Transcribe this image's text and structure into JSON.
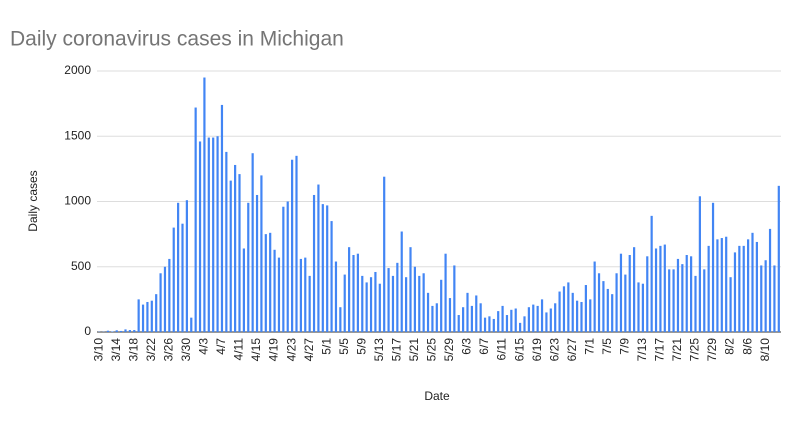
{
  "chart_data": {
    "type": "bar",
    "title": "Daily coronavirus cases in Michigan",
    "x_label": "Date",
    "y_label": "Daily cases",
    "categories": [
      "3/10",
      null,
      null,
      null,
      "3/14",
      null,
      null,
      null,
      "3/18",
      null,
      null,
      null,
      "3/22",
      null,
      null,
      null,
      "3/26",
      null,
      null,
      null,
      "3/30",
      null,
      null,
      null,
      "4/3",
      null,
      null,
      null,
      "4/7",
      null,
      null,
      null,
      "4/11",
      null,
      null,
      null,
      "4/15",
      null,
      null,
      null,
      "4/19",
      null,
      null,
      null,
      "4/23",
      null,
      null,
      null,
      "4/27",
      null,
      null,
      null,
      "5/1",
      null,
      null,
      null,
      "5/5",
      null,
      null,
      null,
      "5/9",
      null,
      null,
      null,
      "5/13",
      null,
      null,
      null,
      "5/17",
      null,
      null,
      null,
      "5/21",
      null,
      null,
      null,
      "5/25",
      null,
      null,
      null,
      "5/29",
      null,
      null,
      null,
      "6/3",
      null,
      null,
      null,
      "6/7",
      null,
      null,
      null,
      "6/11",
      null,
      null,
      null,
      "6/15",
      null,
      null,
      null,
      "6/19",
      null,
      null,
      null,
      "6/23",
      null,
      null,
      null,
      "6/27",
      null,
      null,
      null,
      "7/1",
      null,
      null,
      null,
      "7/5",
      null,
      null,
      null,
      "7/9",
      null,
      null,
      null,
      "7/13",
      null,
      null,
      null,
      "7/17",
      null,
      null,
      null,
      "7/21",
      null,
      null,
      null,
      "7/25",
      null,
      null,
      null,
      "7/29",
      null,
      null,
      null,
      "8/2",
      null,
      null,
      null,
      "8/6",
      null,
      null,
      null,
      "8/10",
      null,
      null,
      null
    ],
    "values": [
      2,
      2,
      10,
      4,
      13,
      8,
      20,
      15,
      15,
      250,
      210,
      230,
      240,
      290,
      450,
      500,
      560,
      800,
      990,
      830,
      1010,
      110,
      1720,
      1460,
      1950,
      1490,
      1490,
      1500,
      1740,
      1380,
      1160,
      1280,
      1210,
      640,
      990,
      1370,
      1050,
      1200,
      750,
      760,
      630,
      570,
      960,
      1000,
      1320,
      1350,
      560,
      570,
      430,
      1050,
      1130,
      980,
      970,
      850,
      540,
      190,
      440,
      650,
      590,
      600,
      430,
      380,
      420,
      460,
      370,
      1190,
      490,
      430,
      530,
      770,
      420,
      650,
      500,
      430,
      450,
      300,
      200,
      220,
      400,
      600,
      260,
      510,
      130,
      190,
      300,
      200,
      280,
      220,
      110,
      120,
      100,
      160,
      200,
      130,
      170,
      180,
      70,
      120,
      190,
      210,
      200,
      250,
      150,
      180,
      220,
      310,
      350,
      380,
      300,
      240,
      230,
      360,
      250,
      540,
      450,
      390,
      330,
      290,
      450,
      600,
      440,
      590,
      650,
      380,
      370,
      580,
      890,
      640,
      660,
      670,
      480,
      480,
      560,
      520,
      590,
      580,
      430,
      1040,
      480,
      660,
      990,
      710,
      720,
      730,
      420,
      610,
      660,
      660,
      710,
      760,
      690,
      510,
      550,
      790,
      510,
      1120
    ],
    "color": "#4285f4",
    "ylim": [
      0,
      2000
    ],
    "yticks": [
      0,
      500,
      1000,
      1500,
      2000
    ],
    "grid": true
  }
}
